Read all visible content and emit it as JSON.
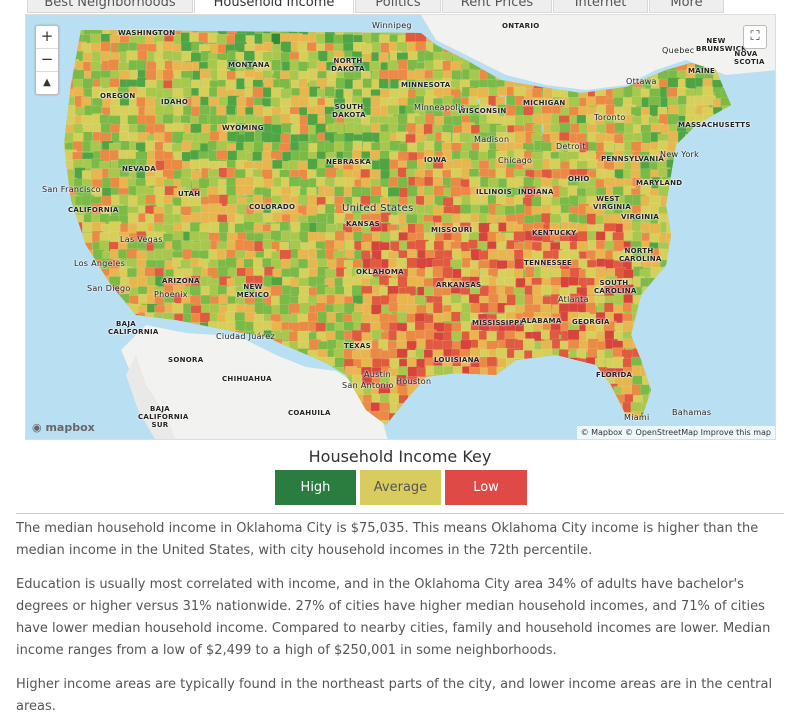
{
  "tabs": [
    {
      "label": "Best Neighborhoods",
      "active": false
    },
    {
      "label": "Household Income",
      "active": true
    },
    {
      "label": "Politics",
      "active": false
    },
    {
      "label": "Rent Prices",
      "active": false
    },
    {
      "label": "Internet",
      "active": false
    },
    {
      "label": "More",
      "active": false
    }
  ],
  "map": {
    "zoom_in": "+",
    "zoom_out": "−",
    "compass": "▲",
    "fullscreen": "⛶",
    "logo": "mapbox",
    "attribution": "© Mapbox © OpenStreetMap  Improve this map",
    "labels": {
      "washington": "WASHINGTON",
      "montana": "MONTANA",
      "north_dakota": "NORTH DAKOTA",
      "minnesota": "MINNESOTA",
      "winnipeg": "Winnipeg",
      "ontario": "ONTARIO",
      "quebec": "Quebec",
      "new_brunswick": "NEW BRUNSWICK",
      "nova_scotia": "NOVA SCOTIA",
      "maine": "MAINE",
      "oregon": "OREGON",
      "idaho": "IDAHO",
      "south_dakota": "SOUTH DAKOTA",
      "wisconsin": "WISCONSIN",
      "michigan": "MICHIGAN",
      "ottawa": "Ottawa",
      "toronto": "Toronto",
      "massachusetts": "MASSACHUSETTS",
      "wyoming": "WYOMING",
      "minneapolis": "Minneapolis",
      "madison": "Madison",
      "detroit": "Detroit",
      "nevada": "NEVADA",
      "nebraska": "NEBRASKA",
      "iowa": "IOWA",
      "chicago": "Chicago",
      "pennsylvania": "PENNSYLVANIA",
      "new_york": "New York",
      "san_francisco": "San Francisco",
      "utah": "UTAH",
      "illinois": "ILLINOIS",
      "indiana": "INDIANA",
      "ohio": "OHIO",
      "maryland": "MARYLAND",
      "california": "CALIFORNIA",
      "colorado": "COLORADO",
      "united_states": "United States",
      "kansas": "KANSAS",
      "west_virginia": "WEST VIRGINIA",
      "virginia": "VIRGINIA",
      "missouri": "MISSOURI",
      "kentucky": "KENTUCKY",
      "las_vegas": "Las Vegas",
      "north_carolina": "NORTH CAROLINA",
      "tennessee": "TENNESSEE",
      "los_angeles": "Los Angeles",
      "oklahoma": "OKLAHOMA",
      "arizona": "ARIZONA",
      "arkansas": "ARKANSAS",
      "south_carolina": "SOUTH CAROLINA",
      "san_diego": "San Diego",
      "new_mexico": "NEW MEXICO",
      "phoenix": "Phoenix",
      "atlanta": "Atlanta",
      "baja_california": "BAJA CALIFORNIA",
      "mississippi": "MISSISSIPPI",
      "alabama": "ALABAMA",
      "georgia": "GEORGIA",
      "ciudad_juarez": "Ciudad Juárez",
      "texas": "TEXAS",
      "sonora": "SONORA",
      "louisiana": "LOUISIANA",
      "chihuahua": "CHIHUAHUA",
      "austin": "Austin",
      "houston": "Houston",
      "san_antonio": "San Antonio",
      "florida": "FLORIDA",
      "baja_california_sur": "BAJA CALIFORNIA SUR",
      "coahuila": "COAHUILA",
      "miami": "Miami",
      "bahamas": "Bahamas"
    }
  },
  "key": {
    "title": "Household Income Key",
    "items": [
      {
        "label": "High",
        "color": "#2a7d3e",
        "text_color": "#ffffff"
      },
      {
        "label": "Average",
        "color": "#d9cc5f",
        "text_color": "#555555"
      },
      {
        "label": "Low",
        "color": "#e04a46",
        "text_color": "#ffffff"
      }
    ]
  },
  "paragraphs": [
    "The median household income in Oklahoma City is $75,035. This means Oklahoma City income is higher than the median income in the United States, with city household incomes in the 72th percentile.",
    "Education is usually most correlated with income, and in the Oklahoma City area 34% of adults have bachelor's degrees or higher versus 31% nationwide. 27% of cities have higher median household incomes, and 71% of cities have lower median household income. Compared to nearby cities, family and household incomes are lower. Median income ranges from a low of $2,499 to a high of $250,001 in some neighborhoods.",
    "Higher income areas are typically found in the northeast parts of the city, and lower income areas are in the central areas."
  ]
}
